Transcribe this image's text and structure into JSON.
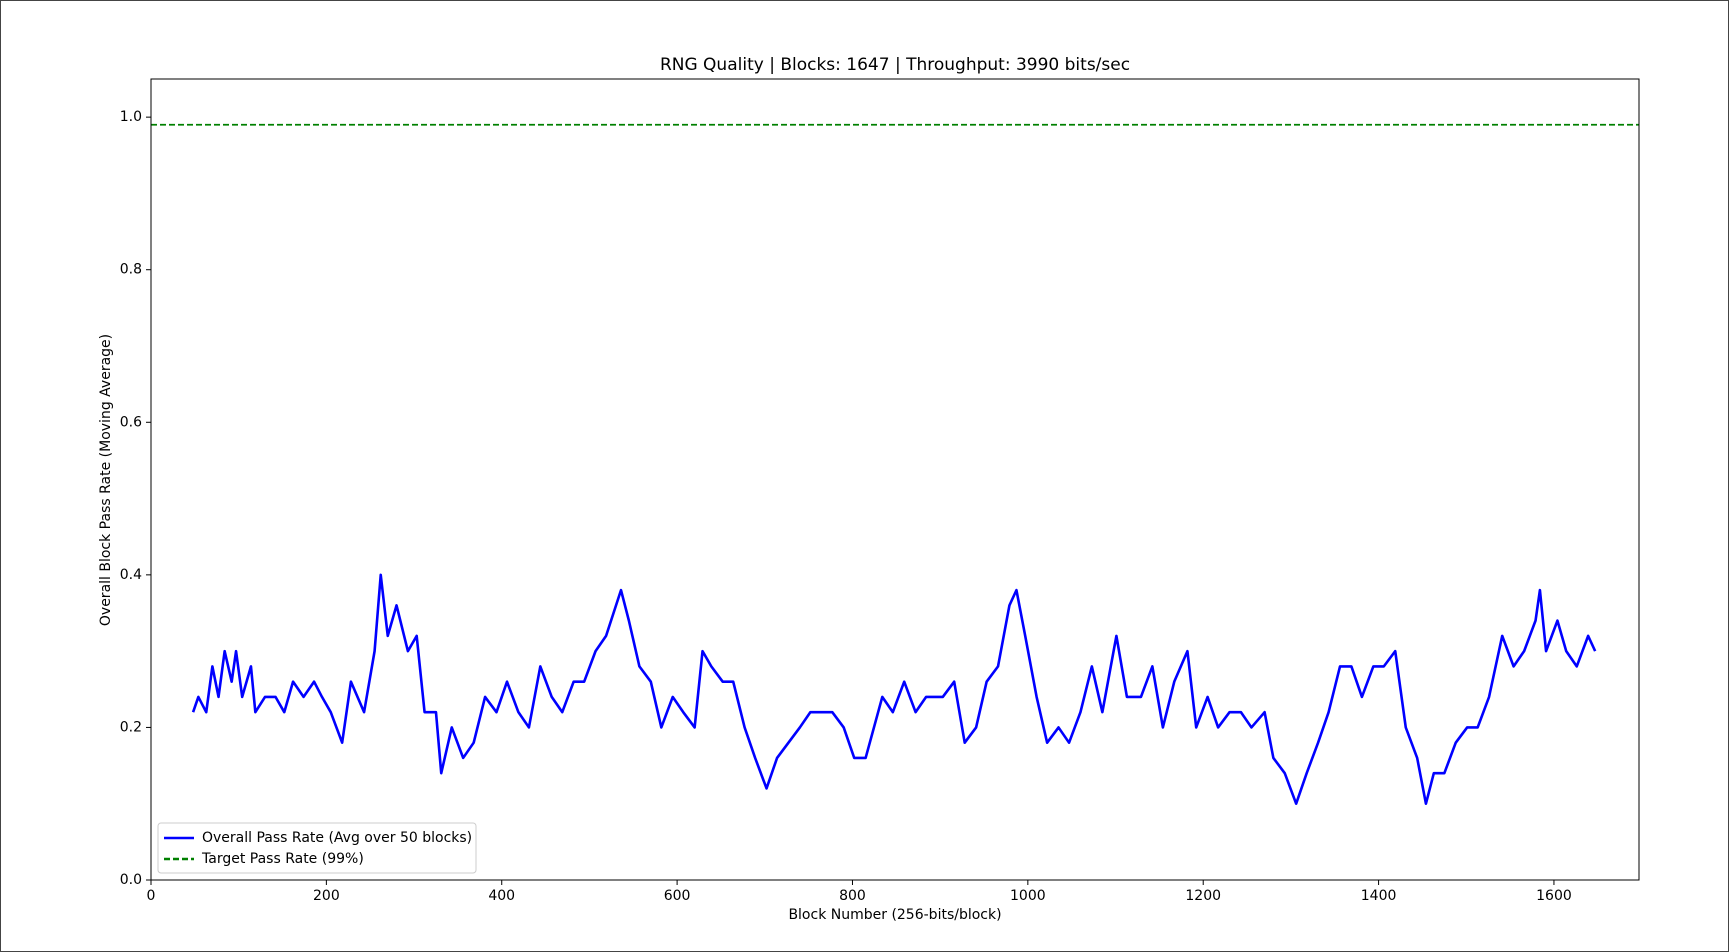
{
  "chart_data": {
    "type": "line",
    "title": "RNG Quality | Blocks: 1647 | Throughput: 3990 bits/sec",
    "x_label": "Block Number (256-bits/block)",
    "y_label": "Overall Block Pass Rate (Moving Average)",
    "xlim": [
      0,
      1697
    ],
    "ylim": [
      0,
      1.05
    ],
    "xticks": [
      0,
      200,
      400,
      600,
      800,
      1000,
      1200,
      1400,
      1600
    ],
    "yticks": [
      {
        "value": 0,
        "label": "0.0"
      },
      0.2,
      0.4,
      0.6,
      0.8,
      {
        "value": 1,
        "label": "1.0"
      }
    ],
    "grid": false,
    "legend": "lower left",
    "series": [
      {
        "name": "Overall Pass Rate (Avg over 50 blocks)",
        "color": "#0000ff",
        "x": [
          48,
          54,
          63,
          70,
          77,
          84,
          92,
          97,
          104,
          114,
          119,
          130,
          142,
          152,
          162,
          174,
          186,
          195,
          205,
          218,
          228,
          243,
          255,
          262,
          270,
          280,
          293,
          303,
          312,
          325,
          331,
          343,
          356,
          368,
          381,
          394,
          406,
          419,
          431,
          444,
          457,
          469,
          482,
          494,
          507,
          519,
          536,
          545,
          557,
          570,
          582,
          595,
          607,
          620,
          629,
          639,
          652,
          664,
          677,
          689,
          702,
          714,
          727,
          740,
          752,
          765,
          777,
          790,
          802,
          815,
          834,
          846,
          859,
          872,
          884,
          903,
          916,
          928,
          941,
          953,
          966,
          979,
          987,
          997,
          1010,
          1022,
          1035,
          1047,
          1060,
          1073,
          1085,
          1101,
          1113,
          1129,
          1142,
          1154,
          1167,
          1182,
          1192,
          1205,
          1217,
          1230,
          1243,
          1255,
          1270,
          1280,
          1293,
          1306,
          1318,
          1331,
          1343,
          1356,
          1369,
          1381,
          1394,
          1406,
          1419,
          1431,
          1444,
          1454,
          1463,
          1475,
          1488,
          1501,
          1513,
          1526,
          1541,
          1554,
          1566,
          1579,
          1584,
          1591,
          1604,
          1614,
          1626,
          1639,
          1647
        ],
        "values": [
          0.22,
          0.24,
          0.22,
          0.28,
          0.24,
          0.3,
          0.26,
          0.3,
          0.24,
          0.28,
          0.22,
          0.24,
          0.24,
          0.22,
          0.26,
          0.24,
          0.26,
          0.24,
          0.22,
          0.18,
          0.26,
          0.22,
          0.3,
          0.4,
          0.32,
          0.36,
          0.3,
          0.32,
          0.22,
          0.22,
          0.14,
          0.2,
          0.16,
          0.18,
          0.24,
          0.22,
          0.26,
          0.22,
          0.2,
          0.28,
          0.24,
          0.22,
          0.26,
          0.26,
          0.3,
          0.32,
          0.38,
          0.34,
          0.28,
          0.26,
          0.2,
          0.24,
          0.22,
          0.2,
          0.3,
          0.28,
          0.26,
          0.26,
          0.2,
          0.16,
          0.12,
          0.16,
          0.18,
          0.2,
          0.22,
          0.22,
          0.22,
          0.2,
          0.16,
          0.16,
          0.24,
          0.22,
          0.26,
          0.22,
          0.24,
          0.24,
          0.26,
          0.18,
          0.2,
          0.26,
          0.28,
          0.36,
          0.38,
          0.32,
          0.24,
          0.18,
          0.2,
          0.18,
          0.22,
          0.28,
          0.22,
          0.32,
          0.24,
          0.24,
          0.28,
          0.2,
          0.26,
          0.3,
          0.2,
          0.24,
          0.2,
          0.22,
          0.22,
          0.2,
          0.22,
          0.16,
          0.14,
          0.1,
          0.14,
          0.18,
          0.22,
          0.28,
          0.28,
          0.24,
          0.28,
          0.28,
          0.3,
          0.2,
          0.16,
          0.1,
          0.14,
          0.14,
          0.18,
          0.2,
          0.2,
          0.24,
          0.32,
          0.28,
          0.3,
          0.34,
          0.38,
          0.3,
          0.34,
          0.3,
          0.28,
          0.32,
          0.3
        ]
      }
    ],
    "reference_lines": [
      {
        "name": "Target Pass Rate (99%)",
        "value": 0.99,
        "color": "#008000",
        "style": "dashed"
      }
    ]
  }
}
